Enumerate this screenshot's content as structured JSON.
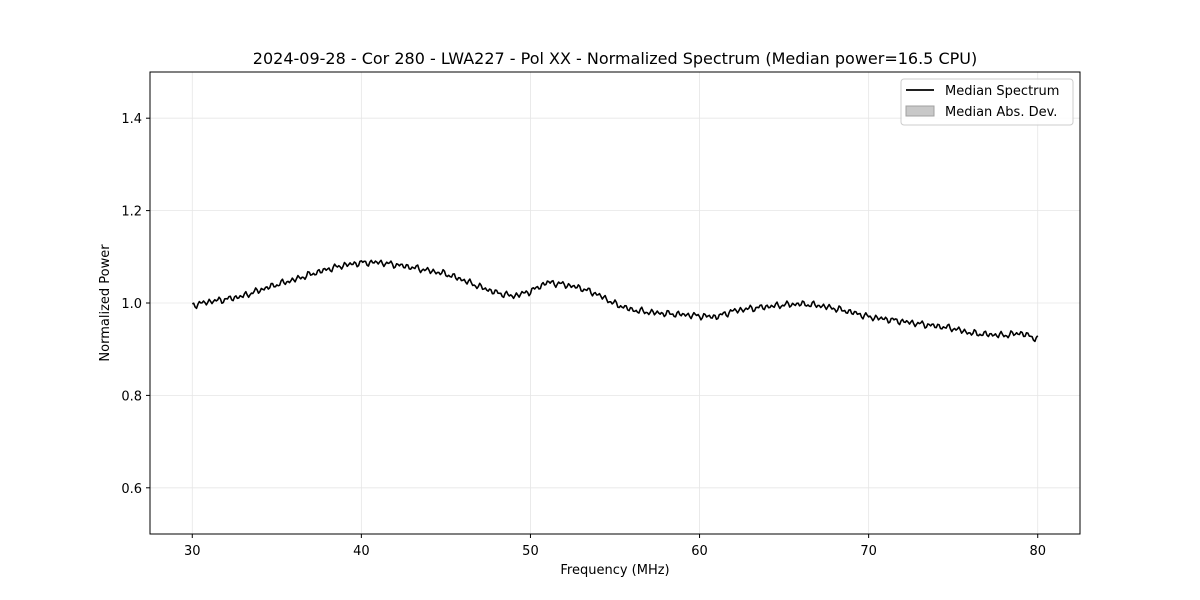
{
  "chart_data": {
    "type": "line",
    "title": "2024-09-28 - Cor 280 - LWA227 - Pol XX - Normalized Spectrum (Median power=16.5 CPU)",
    "xlabel": "Frequency (MHz)",
    "ylabel": "Normalized Power",
    "xlim": [
      27.5,
      82.5
    ],
    "ylim": [
      0.5,
      1.5
    ],
    "xticks": [
      30,
      40,
      50,
      60,
      70,
      80
    ],
    "yticks": [
      0.6,
      0.8,
      1.0,
      1.2,
      1.4
    ],
    "xtick_labels": [
      "30",
      "40",
      "50",
      "60",
      "70",
      "80"
    ],
    "ytick_labels": [
      "0.6",
      "0.8",
      "1.0",
      "1.2",
      "1.4"
    ],
    "grid": true,
    "legend_position": "top-right",
    "legend": [
      "Median Spectrum",
      "Median Abs. Dev."
    ],
    "series": [
      {
        "name": "Median Spectrum",
        "color": "#000000",
        "x": [
          30,
          31,
          32,
          33,
          34,
          35,
          36,
          37,
          38,
          39,
          40,
          41,
          42,
          43,
          44,
          45,
          46,
          47,
          48,
          49,
          50,
          51,
          52,
          53,
          54,
          55,
          56,
          57,
          58,
          59,
          60,
          61,
          62,
          63,
          64,
          65,
          66,
          67,
          68,
          69,
          70,
          71,
          72,
          73,
          74,
          75,
          76,
          77,
          78,
          79,
          80
        ],
        "values": [
          0.995,
          1.003,
          1.008,
          1.015,
          1.028,
          1.04,
          1.05,
          1.062,
          1.073,
          1.082,
          1.087,
          1.088,
          1.083,
          1.077,
          1.07,
          1.063,
          1.05,
          1.035,
          1.022,
          1.015,
          1.025,
          1.045,
          1.04,
          1.032,
          1.018,
          0.998,
          0.985,
          0.98,
          0.977,
          0.975,
          0.972,
          0.97,
          0.983,
          0.988,
          0.992,
          0.996,
          0.998,
          0.995,
          0.988,
          0.98,
          0.97,
          0.965,
          0.96,
          0.955,
          0.95,
          0.945,
          0.935,
          0.932,
          0.93,
          0.935,
          0.922
        ]
      }
    ]
  }
}
